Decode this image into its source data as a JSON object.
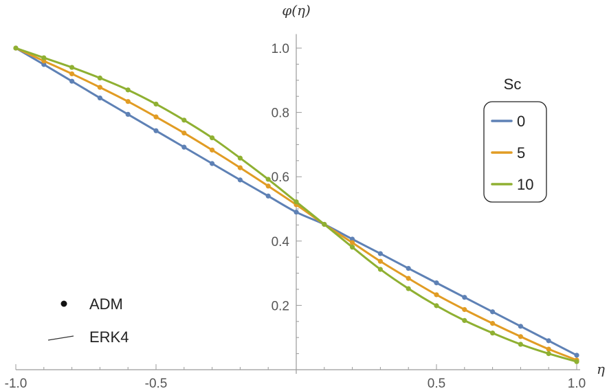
{
  "chart_data": {
    "type": "line",
    "title": "",
    "xlabel": "η",
    "ylabel": "φ(η)",
    "xlim": [
      -1.0,
      1.0
    ],
    "ylim": [
      0,
      1.05
    ],
    "xticks": [
      -1.0,
      -0.5,
      0.5,
      1.0
    ],
    "xtick_labels": [
      "-1.0",
      "-0.5",
      "0.5",
      "1.0"
    ],
    "yticks": [
      0.2,
      0.4,
      0.6,
      0.8,
      1.0
    ],
    "ytick_labels": [
      "0.2",
      "0.4",
      "0.6",
      "0.8",
      "1.0"
    ],
    "legend_title": "Sc",
    "legend_placement": "right",
    "markers_legend": [
      {
        "label": "ADM",
        "kind": "dot"
      },
      {
        "label": "ERK4",
        "kind": "line"
      }
    ],
    "x": [
      -1.0,
      -0.9,
      -0.8,
      -0.7,
      -0.6,
      -0.5,
      -0.4,
      -0.3,
      -0.2,
      -0.1,
      0.0,
      0.1,
      0.2,
      0.3,
      0.4,
      0.5,
      0.6,
      0.7,
      0.8,
      0.9,
      1.0
    ],
    "series": [
      {
        "name": "0",
        "color": "#5e81b5",
        "values": [
          1.0,
          0.949,
          0.897,
          0.845,
          0.794,
          0.743,
          0.692,
          0.641,
          0.59,
          0.54,
          0.49,
          0.452,
          0.406,
          0.361,
          0.315,
          0.27,
          0.225,
          0.18,
          0.135,
          0.09,
          0.045
        ]
      },
      {
        "name": "5",
        "color": "#e19c24",
        "values": [
          1.0,
          0.96,
          0.92,
          0.878,
          0.834,
          0.786,
          0.736,
          0.683,
          0.628,
          0.571,
          0.513,
          0.452,
          0.395,
          0.337,
          0.284,
          0.233,
          0.187,
          0.144,
          0.103,
          0.064,
          0.03
        ]
      },
      {
        "name": "10",
        "color": "#8fb032",
        "values": [
          1.0,
          0.97,
          0.94,
          0.907,
          0.87,
          0.826,
          0.776,
          0.721,
          0.658,
          0.592,
          0.522,
          0.452,
          0.381,
          0.312,
          0.252,
          0.199,
          0.153,
          0.114,
          0.079,
          0.05,
          0.025
        ]
      }
    ]
  }
}
